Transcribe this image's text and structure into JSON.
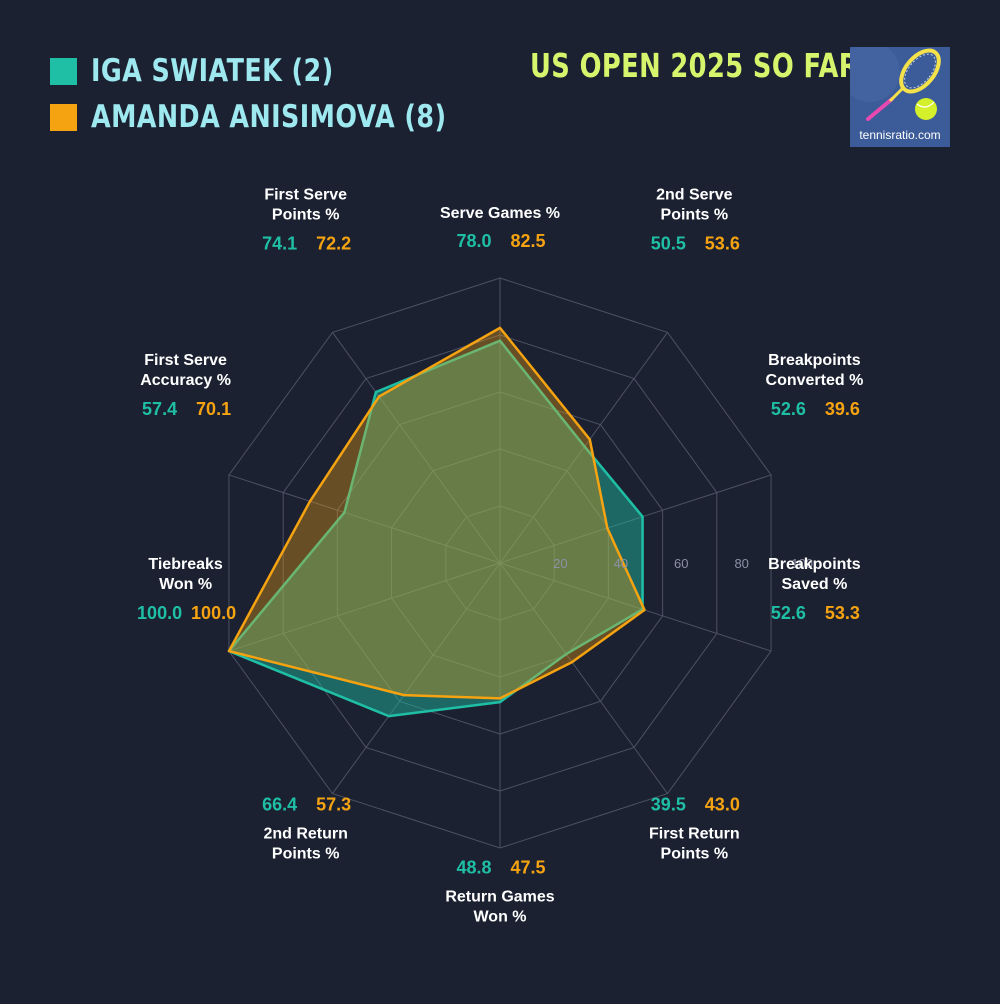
{
  "header": {
    "title": "US OPEN 2025 SO FAR",
    "logo_text": "tennisratio.com"
  },
  "legend": [
    {
      "label": "IGA SWIATEK (2)",
      "color": "#1fbfa6"
    },
    {
      "label": "AMANDA ANISIMOVA (8)",
      "color": "#f5a310"
    }
  ],
  "chart_data": {
    "type": "radar",
    "rlim": [
      0,
      100
    ],
    "ticks": [
      20,
      40,
      60,
      80,
      100
    ],
    "grid": true,
    "categories": [
      "Serve Games %",
      "2nd Serve Points %",
      "Breakpoints Converted %",
      "Breakpoints Saved %",
      "First Return Points %",
      "Return Games Won %",
      "2nd Return Points %",
      "Tiebreaks Won %",
      "First Serve Accuracy %",
      "First Serve Points %"
    ],
    "series": [
      {
        "name": "IGA SWIATEK (2)",
        "color": "#1fbfa6",
        "values": [
          78.0,
          50.5,
          52.6,
          52.6,
          39.5,
          48.8,
          66.4,
          100.0,
          57.4,
          74.1
        ]
      },
      {
        "name": "AMANDA ANISIMOVA (8)",
        "color": "#f5a310",
        "values": [
          82.5,
          53.6,
          39.6,
          53.3,
          43.0,
          47.5,
          57.3,
          100.0,
          70.1,
          72.2
        ]
      }
    ],
    "labels": [
      {
        "lines": [
          "Serve Games %"
        ],
        "v1": "78.0",
        "v2": "82.5"
      },
      {
        "lines": [
          "2nd Serve",
          "Points %"
        ],
        "v1": "50.5",
        "v2": "53.6"
      },
      {
        "lines": [
          "Breakpoints",
          "Converted %"
        ],
        "v1": "52.6",
        "v2": "39.6"
      },
      {
        "lines": [
          "Breakpoints",
          "Saved %"
        ],
        "v1": "52.6",
        "v2": "53.3"
      },
      {
        "lines": [
          "First Return",
          "Points %"
        ],
        "v1": "39.5",
        "v2": "43.0"
      },
      {
        "lines": [
          "Return Games",
          "Won %"
        ],
        "v1": "48.8",
        "v2": "47.5"
      },
      {
        "lines": [
          "2nd Return",
          "Points %"
        ],
        "v1": "66.4",
        "v2": "57.3"
      },
      {
        "lines": [
          "Tiebreaks",
          "Won %"
        ],
        "v1": "100.0",
        "v2": "100.0"
      },
      {
        "lines": [
          "First Serve",
          "Accuracy %"
        ],
        "v1": "57.4",
        "v2": "70.1"
      },
      {
        "lines": [
          "First Serve",
          "Points %"
        ],
        "v1": "74.1",
        "v2": "72.2"
      }
    ]
  }
}
